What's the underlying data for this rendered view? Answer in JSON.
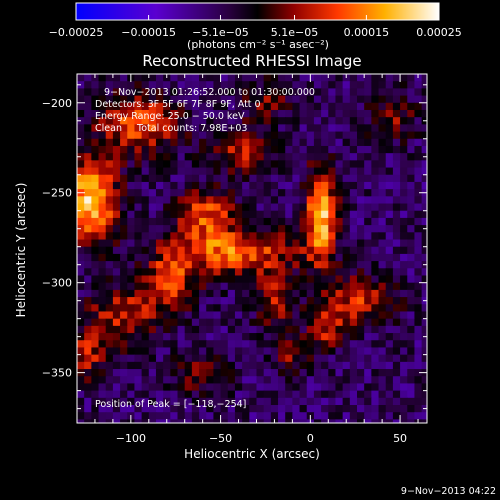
{
  "chart_data": {
    "type": "heatmap",
    "title": "Reconstructed RHESSI Image",
    "xlabel": "Heliocentric X (arcsec)",
    "ylabel": "Heliocentric Y (arcsec)",
    "xlim": [
      -130,
      65
    ],
    "ylim": [
      -378,
      -184
    ],
    "xticks": [
      -100,
      -50,
      0,
      50
    ],
    "xtick_labels": [
      "−100",
      "−50",
      "0",
      "50"
    ],
    "yticks": [
      -200,
      -250,
      -300,
      -350
    ],
    "ytick_labels": [
      "−200",
      "−250",
      "−300",
      "−350"
    ],
    "colorbar": {
      "range": [
        -0.00025,
        0.00025
      ],
      "ticks": [
        -0.00025,
        -0.00015,
        -5.1e-05,
        5.1e-05,
        0.00015,
        0.00025
      ],
      "tick_labels": [
        "−0.00025",
        "−0.00015",
        "−5.1e−05",
        "5.1e−05",
        "0.00015",
        "0.00025"
      ],
      "unit_label": "(photons cm⁻² s⁻¹ asec⁻²)",
      "colormap": [
        "#0000ff",
        "#6a00c8",
        "#000000",
        "#b00000",
        "#ff5000",
        "#ffb400",
        "#ffffff"
      ]
    },
    "annotations": {
      "time_range": "9−Nov−2013 01:26:52.000 to 01:30:00.000",
      "detectors": "Detectors: 3F 5F 6F 7F 8F 9F, Att 0",
      "energy": "Energy Range: 25.0 − 50.0 keV",
      "clean": "Clean     Total counts: 7.98E+03",
      "peak": "Position of Peak = [−118,−254]"
    },
    "peak_position": [
      -118,
      -254
    ],
    "sources": [
      {
        "x": -122,
        "y": -254,
        "sx": 10,
        "sy": 16,
        "a": 1.0
      },
      {
        "x": 6,
        "y": -262,
        "sx": 6,
        "sy": 18,
        "a": 0.95
      },
      {
        "x": -42,
        "y": -283,
        "sx": 26,
        "sy": 9,
        "a": 0.7
      },
      {
        "x": -58,
        "y": -262,
        "sx": 12,
        "sy": 10,
        "a": 0.6
      },
      {
        "x": -95,
        "y": -212,
        "sx": 16,
        "sy": 12,
        "a": 0.65
      },
      {
        "x": -38,
        "y": -226,
        "sx": 11,
        "sy": 9,
        "a": 0.5
      },
      {
        "x": -105,
        "y": -318,
        "sx": 14,
        "sy": 12,
        "a": 0.5
      },
      {
        "x": -62,
        "y": -350,
        "sx": 10,
        "sy": 8,
        "a": 0.4
      },
      {
        "x": 28,
        "y": -310,
        "sx": 14,
        "sy": 9,
        "a": 0.55
      },
      {
        "x": 10,
        "y": -325,
        "sx": 7,
        "sy": 8,
        "a": 0.5
      },
      {
        "x": -20,
        "y": -310,
        "sx": 8,
        "sy": 10,
        "a": 0.45
      },
      {
        "x": 45,
        "y": -208,
        "sx": 10,
        "sy": 10,
        "a": 0.35
      },
      {
        "x": -78,
        "y": -300,
        "sx": 10,
        "sy": 12,
        "a": 0.55
      },
      {
        "x": -10,
        "y": -340,
        "sx": 8,
        "sy": 8,
        "a": 0.35
      },
      {
        "x": -25,
        "y": -198,
        "sx": 9,
        "sy": 8,
        "a": 0.35
      },
      {
        "x": -125,
        "y": -340,
        "sx": 8,
        "sy": 10,
        "a": 0.45
      }
    ],
    "footer_timestamp": "9−Nov−2013 04:22"
  }
}
